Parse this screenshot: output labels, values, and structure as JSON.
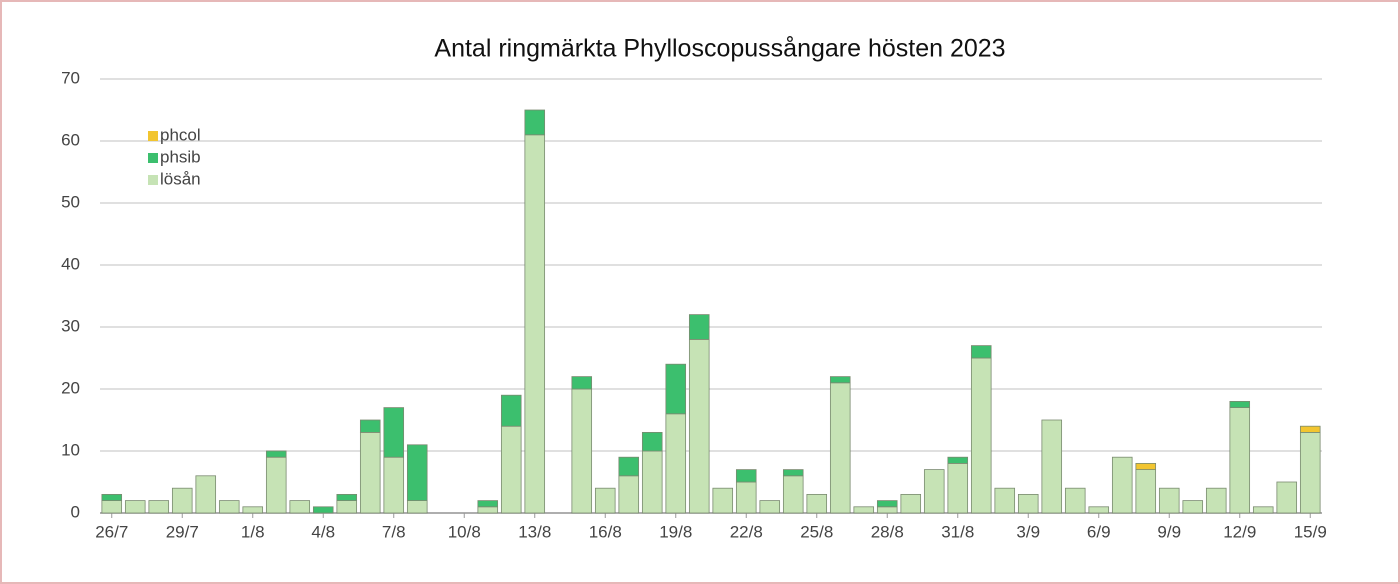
{
  "chart_data": {
    "type": "bar",
    "stacked": true,
    "title": "Antal ringmärkta Phylloscopussångare hösten 2023",
    "categories": [
      "26/7",
      null,
      null,
      "29/7",
      null,
      null,
      "1/8",
      null,
      null,
      "4/8",
      null,
      null,
      "7/8",
      null,
      null,
      "10/8",
      null,
      null,
      "13/8",
      null,
      null,
      "16/8",
      null,
      null,
      "19/8",
      null,
      null,
      "22/8",
      null,
      null,
      "25/8",
      null,
      null,
      "28/8",
      null,
      null,
      "31/8",
      null,
      null,
      "3/9",
      null,
      null,
      "6/9",
      null,
      null,
      "9/9",
      null,
      null,
      "12/9",
      null,
      null,
      "15/9"
    ],
    "series": [
      {
        "name": "lösån",
        "color": "#c6e3b5",
        "values": [
          2,
          2,
          2,
          4,
          6,
          2,
          1,
          9,
          2,
          0,
          2,
          13,
          9,
          2,
          0,
          0,
          1,
          14,
          61,
          0,
          20,
          4,
          6,
          10,
          16,
          28,
          4,
          5,
          2,
          6,
          3,
          21,
          1,
          1,
          3,
          7,
          8,
          25,
          4,
          3,
          15,
          4,
          1,
          9,
          7,
          4,
          2,
          4,
          17,
          1,
          5,
          13
        ]
      },
      {
        "name": "phsib",
        "color": "#3cbf6e",
        "values": [
          1,
          0,
          0,
          0,
          0,
          0,
          0,
          1,
          0,
          1,
          1,
          2,
          8,
          9,
          0,
          0,
          1,
          5,
          4,
          0,
          2,
          0,
          3,
          3,
          8,
          4,
          0,
          2,
          0,
          1,
          0,
          1,
          0,
          1,
          0,
          0,
          1,
          2,
          0,
          0,
          0,
          0,
          0,
          0,
          0,
          0,
          0,
          0,
          1,
          0,
          0,
          0
        ]
      },
      {
        "name": "phcol",
        "color": "#f2c530",
        "values": [
          0,
          0,
          0,
          0,
          0,
          0,
          0,
          0,
          0,
          0,
          0,
          0,
          0,
          0,
          0,
          0,
          0,
          0,
          0,
          0,
          0,
          0,
          0,
          0,
          0,
          0,
          0,
          0,
          0,
          0,
          0,
          0,
          0,
          0,
          0,
          0,
          0,
          0,
          0,
          0,
          0,
          0,
          0,
          0,
          1,
          0,
          0,
          0,
          0,
          0,
          0,
          1
        ]
      }
    ],
    "ylim": [
      0,
      70
    ],
    "yticks": [
      0,
      10,
      20,
      30,
      40,
      50,
      60,
      70
    ],
    "grid": true,
    "legend": "upper left"
  }
}
